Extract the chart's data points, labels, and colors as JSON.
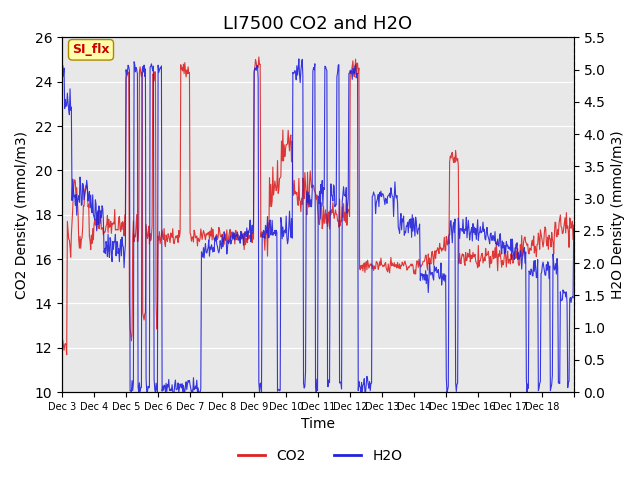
{
  "title": "LI7500 CO2 and H2O",
  "xlabel": "Time",
  "ylabel_left": "CO2 Density (mmol/m3)",
  "ylabel_right": "H2O Density (mmol/m3)",
  "ylim_left": [
    10,
    26
  ],
  "ylim_right": [
    0.0,
    5.5
  ],
  "yticks_left": [
    10,
    12,
    14,
    16,
    18,
    20,
    22,
    24,
    26
  ],
  "yticks_right": [
    0.0,
    0.5,
    1.0,
    1.5,
    2.0,
    2.5,
    3.0,
    3.5,
    4.0,
    4.5,
    5.0,
    5.5
  ],
  "xtick_positions": [
    0,
    1,
    2,
    3,
    4,
    5,
    6,
    7,
    8,
    9,
    10,
    11,
    12,
    13,
    14,
    15,
    16
  ],
  "xtick_labels": [
    "Dec 3",
    "Dec 4",
    "Dec 5",
    "Dec 6",
    "Dec 7",
    "Dec 8",
    "Dec 9",
    "Dec 10",
    "Dec 11",
    "Dec 12",
    "Dec 13",
    "Dec 14",
    "Dec 15",
    "Dec 16",
    "Dec 17",
    "Dec 18",
    ""
  ],
  "co2_color": "#dd2222",
  "h2o_color": "#2222dd",
  "background_color": "#e8e8e8",
  "annotation_text": "SI_flx",
  "annotation_color": "#cc0000",
  "annotation_bg": "#ffffaa",
  "legend_labels": [
    "CO2",
    "H2O"
  ],
  "title_fontsize": 13,
  "label_fontsize": 10
}
